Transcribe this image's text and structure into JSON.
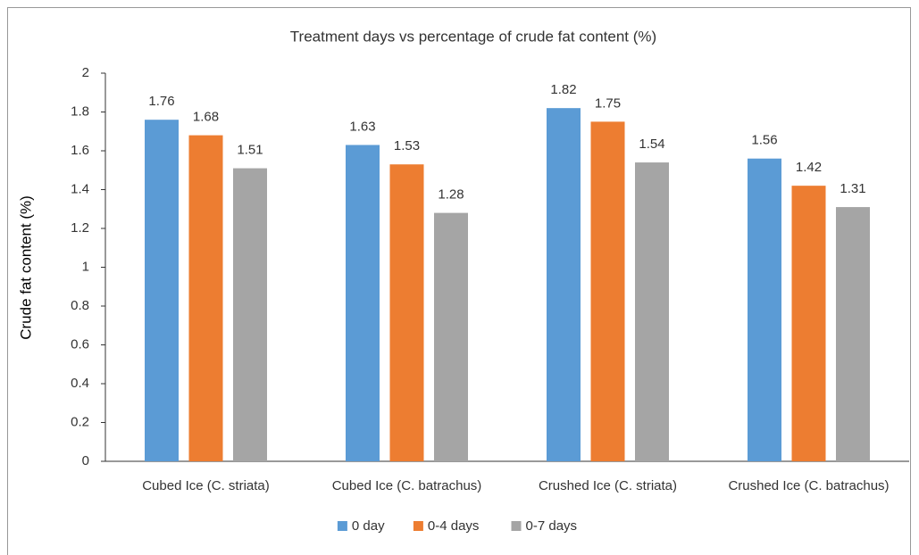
{
  "chart_data": {
    "type": "bar",
    "title": "Treatment days vs percentage of crude fat content (%)",
    "ylabel": "Crude fat content (%)",
    "categories": [
      "Cubed Ice (C. striata)",
      "Cubed Ice (C. batrachus)",
      "Crushed Ice (C. striata)",
      "Crushed Ice (C. batrachus)"
    ],
    "series": [
      {
        "name": "0 day",
        "color": "#5b9bd5",
        "values": [
          1.76,
          1.63,
          1.82,
          1.56
        ]
      },
      {
        "name": "0-4 days",
        "color": "#ed7d31",
        "values": [
          1.68,
          1.53,
          1.75,
          1.42
        ]
      },
      {
        "name": "0-7 days",
        "color": "#a5a5a5",
        "values": [
          1.51,
          1.28,
          1.54,
          1.31
        ]
      }
    ],
    "ylim": [
      0,
      2
    ],
    "yticks": [
      0,
      0.2,
      0.4,
      0.6,
      0.8,
      1,
      1.2,
      1.4,
      1.6,
      1.8,
      2
    ],
    "grid": false,
    "legend": "bottom"
  }
}
